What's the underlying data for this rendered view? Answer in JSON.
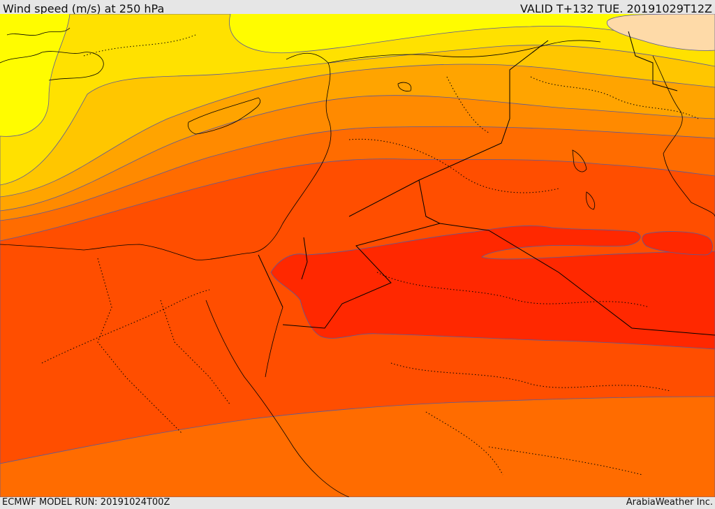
{
  "header": {
    "title": "Wind speed (m/s) at 250 hPa",
    "valid": "VALID T+132 TUE. 20191029T12Z"
  },
  "footer": {
    "model_run": "ECMWF MODEL RUN: 20191024T00Z",
    "credit": "ArabiaWeather Inc."
  },
  "colors": {
    "band_1_lightest": "#fffc00",
    "band_2": "#ffe100",
    "band_3": "#ffc600",
    "band_4": "#ffa400",
    "band_5": "#ff8a00",
    "band_6": "#ff6c00",
    "band_7": "#ff4e00",
    "band_8_core": "#ff2800",
    "low_wind_patch": "#fedaa8",
    "border_line": "#000000",
    "contour_line": "#5a5a9a"
  }
}
